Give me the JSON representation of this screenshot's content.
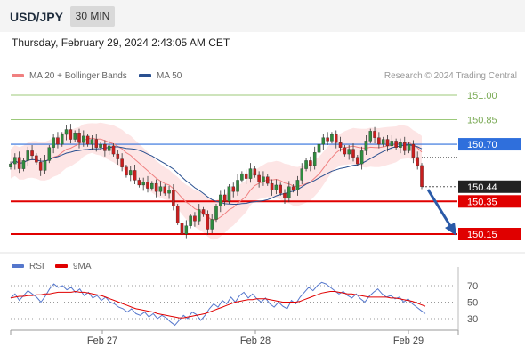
{
  "header": {
    "symbol": "USD/JPY",
    "timeframe": "30 MIN",
    "timestamp": "Thursday, February 29, 2024 2:43:05 AM CET"
  },
  "legend": {
    "ma20": "MA 20 + Bollinger Bands",
    "ma50": "MA 50",
    "credit": "Research © 2024 Trading Central",
    "rsi": "RSI",
    "rsi_ma": "9MA"
  },
  "colors": {
    "ma20": "#f08080",
    "ma50": "#2a5090",
    "band_fill": "#fde0e0",
    "support": "#e00000",
    "pivot": "#2f6fdc",
    "resistance": "#9cc97a",
    "last": "#222222",
    "candle_up": "#2e8b3e",
    "candle_down": "#c81e1e",
    "rsi": "#5577cc",
    "arrow": "#2a5aa8"
  },
  "chart_data": {
    "type": "candlestick",
    "ylim": [
      150.0,
      151.1
    ],
    "x_labels": [
      "Feb 27",
      "Feb 28",
      "Feb 29"
    ],
    "levels": [
      {
        "label": "151.00",
        "value": 151.0,
        "kind": "resistance"
      },
      {
        "label": "150.85",
        "value": 150.85,
        "kind": "resistance"
      },
      {
        "label": "150.70",
        "value": 150.7,
        "kind": "pivot"
      },
      {
        "label": "150.44",
        "value": 150.44,
        "kind": "last"
      },
      {
        "label": "150.35",
        "value": 150.35,
        "kind": "support"
      },
      {
        "label": "150.15",
        "value": 150.15,
        "kind": "support"
      }
    ],
    "ohlc_closes": [
      150.58,
      150.62,
      150.55,
      150.6,
      150.66,
      150.63,
      150.59,
      150.54,
      150.6,
      150.68,
      150.74,
      150.7,
      150.76,
      150.79,
      150.73,
      150.77,
      150.71,
      150.75,
      150.7,
      150.73,
      150.68,
      150.7,
      150.66,
      150.69,
      150.64,
      150.61,
      150.56,
      150.51,
      150.54,
      150.48,
      150.45,
      150.47,
      150.43,
      150.46,
      150.41,
      150.44,
      150.4,
      150.42,
      150.32,
      150.22,
      150.15,
      150.2,
      150.26,
      150.23,
      150.3,
      150.27,
      150.18,
      150.24,
      150.32,
      150.39,
      150.35,
      150.44,
      150.41,
      150.48,
      150.52,
      150.49,
      150.55,
      150.51,
      150.47,
      150.5,
      150.46,
      150.42,
      150.45,
      150.4,
      150.37,
      150.44,
      150.42,
      150.48,
      150.55,
      150.6,
      150.57,
      150.65,
      150.7,
      150.74,
      150.72,
      150.76,
      150.71,
      150.68,
      150.64,
      150.67,
      150.62,
      150.58,
      150.66,
      150.72,
      150.78,
      150.74,
      150.7,
      150.73,
      150.69,
      150.72,
      150.68,
      150.71,
      150.66,
      150.7,
      150.62,
      150.57,
      150.44
    ],
    "rsi": {
      "levels": [
        70,
        50,
        30
      ],
      "ylim": [
        20,
        80
      ],
      "values": [
        55,
        60,
        52,
        58,
        64,
        60,
        56,
        50,
        57,
        66,
        72,
        68,
        70,
        65,
        68,
        62,
        66,
        58,
        62,
        55,
        58,
        52,
        56,
        50,
        48,
        44,
        42,
        38,
        42,
        36,
        34,
        38,
        32,
        36,
        30,
        34,
        31,
        26,
        22,
        28,
        34,
        30,
        38,
        35,
        28,
        34,
        42,
        48,
        44,
        52,
        48,
        56,
        50,
        58,
        62,
        55,
        60,
        54,
        50,
        55,
        48,
        44,
        50,
        45,
        42,
        52,
        48,
        56,
        62,
        68,
        64,
        70,
        74,
        72,
        68,
        64,
        60,
        63,
        58,
        55,
        60,
        54,
        50,
        57,
        62,
        66,
        60,
        56,
        58,
        54,
        56,
        50,
        54,
        48,
        44,
        40,
        36
      ],
      "ma": [
        55,
        56,
        57,
        57,
        58,
        58,
        59,
        59,
        60,
        60,
        61,
        62,
        62,
        62,
        62,
        63,
        62,
        62,
        61,
        60,
        59,
        58,
        56,
        54,
        52,
        50,
        48,
        46,
        44,
        42,
        41,
        40,
        39,
        38,
        36,
        35,
        34,
        33,
        32,
        31,
        31,
        32,
        33,
        34,
        35,
        36,
        38,
        40,
        42,
        44,
        46,
        48,
        50,
        51,
        52,
        53,
        53,
        54,
        54,
        54,
        53,
        52,
        51,
        50,
        50,
        50,
        50,
        51,
        53,
        55,
        57,
        59,
        61,
        62,
        63,
        63,
        62,
        61,
        60,
        60,
        59,
        58,
        57,
        56,
        56,
        56,
        56,
        56,
        55,
        55,
        54,
        53,
        52,
        51,
        49,
        47,
        45
      ]
    }
  }
}
